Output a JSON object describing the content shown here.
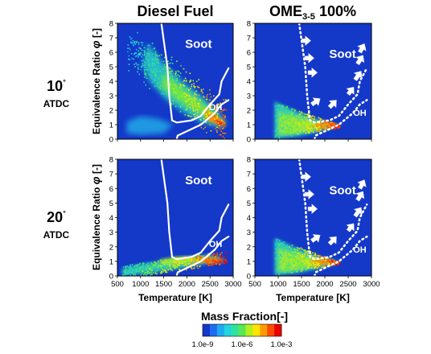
{
  "chart_data": {
    "type": "heatmap",
    "columns": [
      "Diesel Fuel",
      "OME3-5 100%"
    ],
    "column_titles": [
      {
        "text": "Diesel Fuel"
      },
      {
        "text": "OME",
        "sub": "3-5",
        "suffix": " 100%"
      }
    ],
    "rows": [
      {
        "angle": "10",
        "unit": "ATDC"
      },
      {
        "angle": "20",
        "unit": "ATDC"
      }
    ],
    "degree_mark": "°",
    "xlabel": "Temperature [K]",
    "ylabel": "Equivalence Ratio",
    "ylabel_symbol": "φ",
    "ylabel_unit": "[-]",
    "x_ticks": [
      500,
      1000,
      1500,
      2000,
      2500,
      3000
    ],
    "y_ticks": [
      0,
      1,
      2,
      3,
      4,
      5,
      6,
      7,
      8
    ],
    "xlim": [
      500,
      3000
    ],
    "ylim": [
      0,
      8
    ],
    "background": "#1438c8",
    "region_labels": {
      "soot": "Soot",
      "oh": "OH"
    },
    "soot_boundary": [
      [
        1450,
        8
      ],
      [
        1580,
        5
      ],
      [
        1620,
        3
      ],
      [
        1680,
        1.3
      ],
      [
        1780,
        1.15
      ],
      [
        2100,
        1.3
      ],
      [
        2300,
        1.6
      ],
      [
        2500,
        2.4
      ],
      [
        2700,
        3.1
      ],
      [
        2750,
        4.0
      ],
      [
        2900,
        4.9
      ]
    ],
    "oh_boundary": [
      [
        1780,
        0
      ],
      [
        1800,
        0.25
      ],
      [
        2000,
        0.55
      ],
      [
        2300,
        1.0
      ],
      [
        2600,
        1.8
      ],
      [
        2750,
        2.4
      ],
      [
        2900,
        2.7
      ]
    ],
    "colorbar": {
      "title": "Mass Fraction[-]",
      "ticks": [
        "1.0e-9",
        "1.0e-6",
        "1.0e-3"
      ],
      "colors": [
        "#1438c8",
        "#1c6cf0",
        "#20a8f0",
        "#20d4e0",
        "#30e0a0",
        "#58e850",
        "#b4f020",
        "#ffe400",
        "#ff9a00",
        "#ff4a00",
        "#e80000"
      ]
    }
  }
}
